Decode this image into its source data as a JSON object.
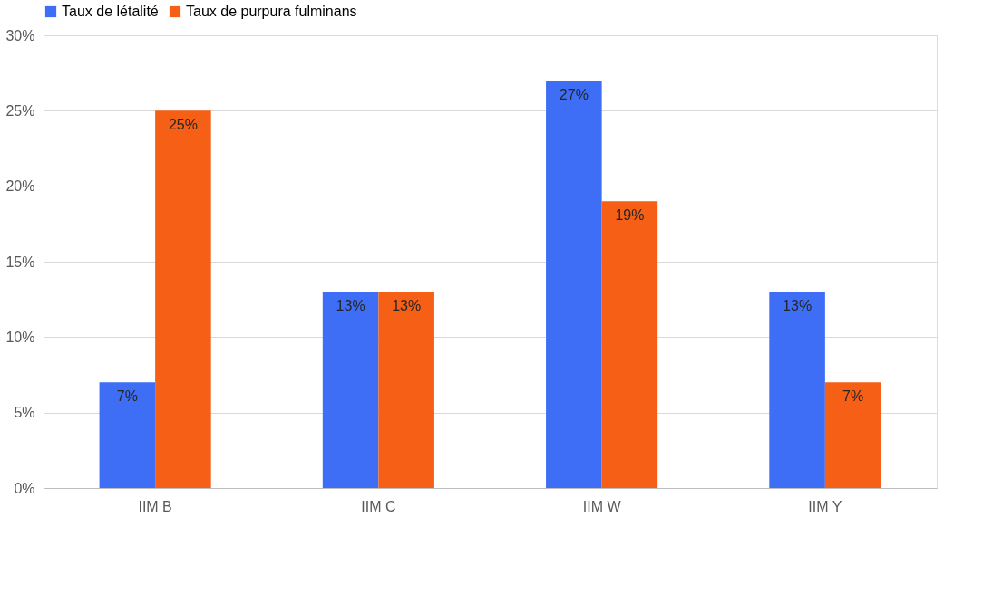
{
  "chart_data": {
    "type": "bar",
    "categories": [
      "IIM B",
      "IIM C",
      "IIM W",
      "IIM Y"
    ],
    "series": [
      {
        "name": "Taux de létalité",
        "color": "#3d6ef5",
        "values": [
          7,
          13,
          27,
          13
        ],
        "value_labels": [
          "7%",
          "13%",
          "27%",
          "13%"
        ]
      },
      {
        "name": "Taux de purpura fulminans",
        "color": "#f55f16",
        "values": [
          25,
          13,
          19,
          7
        ],
        "value_labels": [
          "25%",
          "13%",
          "19%",
          "7%"
        ]
      }
    ],
    "ylim": [
      0,
      30
    ],
    "yticks": [
      {
        "value": 0,
        "label": "0%"
      },
      {
        "value": 5,
        "label": "5%"
      },
      {
        "value": 10,
        "label": "10%"
      },
      {
        "value": 15,
        "label": "15%"
      },
      {
        "value": 20,
        "label": "20%"
      },
      {
        "value": 25,
        "label": "25%"
      },
      {
        "value": 30,
        "label": "30%"
      }
    ],
    "grid": "y",
    "legend": "top"
  }
}
